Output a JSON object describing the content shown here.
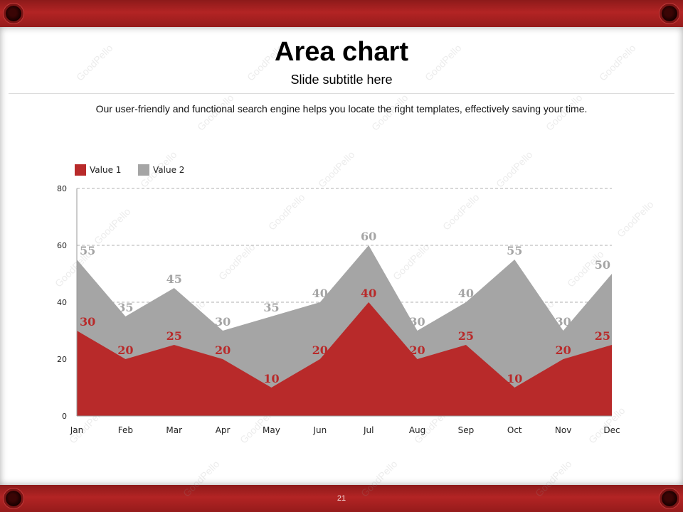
{
  "slide": {
    "title": "Area chart",
    "subtitle": "Slide subtitle here",
    "description": "Our user-friendly  and  functional  search engine  helps  you locate the right  templates, effectively saving your time.",
    "page_number": "21",
    "watermark": "GoodPello"
  },
  "colors": {
    "frame": "#a81f1f",
    "value1": "#b82a2a",
    "value2": "#a5a5a5",
    "label1": "#b82a2a",
    "label2": "#a5a5a5"
  },
  "chart_data": {
    "type": "area",
    "categories": [
      "Jan",
      "Feb",
      "Mar",
      "Apr",
      "May",
      "Jun",
      "Jul",
      "Aug",
      "Sep",
      "Oct",
      "Nov",
      "Dec"
    ],
    "series": [
      {
        "name": "Value 1",
        "values": [
          30,
          20,
          25,
          20,
          10,
          20,
          40,
          20,
          25,
          10,
          20,
          25
        ]
      },
      {
        "name": "Value 2",
        "values": [
          55,
          35,
          45,
          30,
          35,
          40,
          60,
          30,
          40,
          55,
          30,
          50
        ]
      }
    ],
    "ylim": [
      0,
      80
    ],
    "yticks": [
      0,
      20,
      40,
      60,
      80
    ],
    "grid": true,
    "legend": "top-left",
    "data_labels": true
  }
}
